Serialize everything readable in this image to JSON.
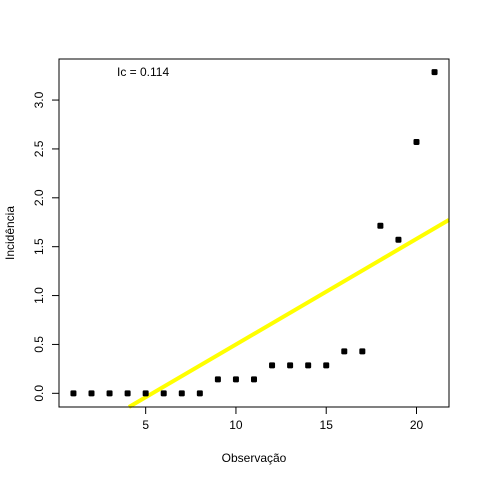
{
  "chart_data": {
    "type": "scatter",
    "xlabel": "Observação",
    "ylabel": "Incidência",
    "xlim": [
      0.2,
      21.8
    ],
    "ylim": [
      -0.14,
      3.42
    ],
    "xticks": [
      5,
      10,
      15,
      20
    ],
    "yticks": [
      0.0,
      0.5,
      1.0,
      1.5,
      2.0,
      2.5,
      3.0
    ],
    "xtick_labels": [
      "5",
      "10",
      "15",
      "20"
    ],
    "ytick_labels": [
      "0.0",
      "0.5",
      "1.0",
      "1.5",
      "2.0",
      "2.5",
      "3.0"
    ],
    "grid": false,
    "annotation": "Ic = 0.114",
    "points": {
      "x": [
        1,
        2,
        3,
        4,
        5,
        6,
        7,
        8,
        9,
        10,
        11,
        12,
        13,
        14,
        15,
        16,
        17,
        18,
        19,
        20,
        21
      ],
      "y": [
        0,
        0,
        0,
        0,
        0,
        0,
        0,
        0,
        0.143,
        0.143,
        0.143,
        0.286,
        0.286,
        0.286,
        0.286,
        0.429,
        0.429,
        1.714,
        1.571,
        2.571,
        3.286
      ],
      "color": "#000000"
    },
    "fit_line": {
      "intercept": -0.58,
      "slope": 0.108,
      "color": "#ffff00"
    }
  }
}
